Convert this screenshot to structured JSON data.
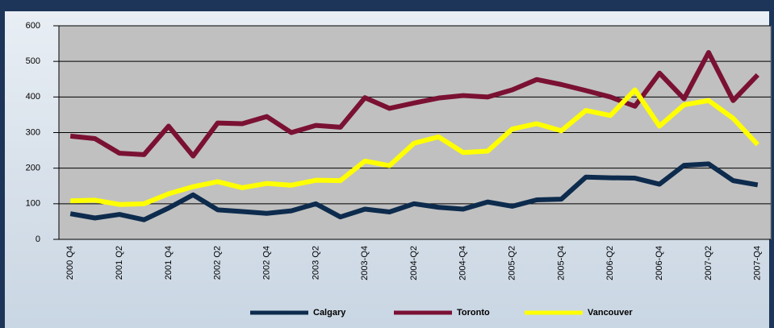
{
  "chart_data": {
    "type": "line",
    "categories": [
      "2000 Q4",
      null,
      "2001 Q2",
      null,
      "2001 Q4",
      null,
      "2002 Q2",
      null,
      "2002 Q4",
      null,
      "2003 Q2",
      null,
      "2003-Q4",
      null,
      "2004-Q2",
      null,
      "2004-Q4",
      null,
      "2005-Q2",
      null,
      "2005-Q4",
      null,
      "2006-Q2",
      null,
      "2006-Q4",
      null,
      "2007-Q2",
      null,
      "2007-Q4"
    ],
    "series": [
      {
        "name": "Calgary",
        "color": "#0d2b4d",
        "values": [
          72,
          60,
          70,
          55,
          88,
          125,
          83,
          78,
          73,
          80,
          100,
          63,
          85,
          77,
          100,
          90,
          85,
          105,
          93,
          111,
          113,
          175,
          173,
          172,
          155,
          208,
          212,
          165,
          153
        ]
      },
      {
        "name": "Toronto",
        "color": "#7a1133",
        "values": [
          290,
          283,
          242,
          238,
          318,
          234,
          327,
          325,
          345,
          300,
          320,
          315,
          398,
          368,
          383,
          397,
          404,
          400,
          420,
          449,
          435,
          418,
          400,
          374,
          467,
          395,
          525,
          390,
          462
        ]
      },
      {
        "name": "Vancouver",
        "color": "#ffff00",
        "values": [
          108,
          110,
          98,
          100,
          128,
          148,
          162,
          145,
          157,
          152,
          166,
          165,
          220,
          207,
          270,
          288,
          244,
          248,
          310,
          325,
          305,
          362,
          348,
          420,
          318,
          378,
          390,
          340,
          266
        ]
      }
    ],
    "ylim": [
      0,
      600
    ],
    "yticks": [
      0,
      100,
      200,
      300,
      400,
      500,
      600
    ],
    "grid": true,
    "legend": "bottom"
  }
}
